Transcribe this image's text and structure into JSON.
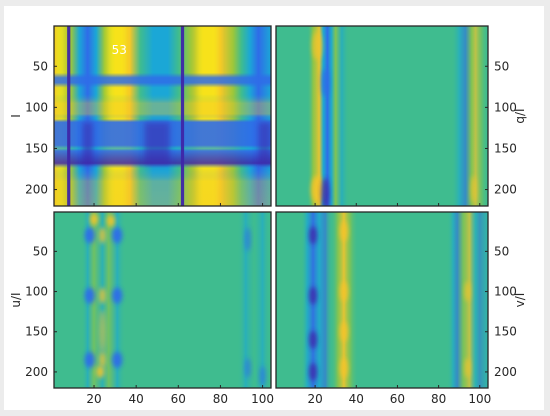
{
  "chart_data": {
    "type": "heatmap",
    "colormap": "parula",
    "layout": "2x2 panels sharing x (columns 1-104) and y (rows 1-220, reversed)",
    "xlim": [
      1,
      104
    ],
    "ylim": [
      220,
      1
    ],
    "xticks": [
      20,
      40,
      60,
      80,
      100
    ],
    "yticks": [
      50,
      100,
      150,
      200
    ],
    "panels": [
      {
        "position": "top-left",
        "ylabel": "I",
        "ylabel_side": "left",
        "annotation": "53",
        "structure": {
          "yellow_column_bands": [
            [
              1,
              10
            ],
            [
              24,
              38
            ],
            [
              66,
              84
            ],
            [
              90,
              97
            ]
          ],
          "blue_column_bands": [
            [
              14,
              20
            ],
            [
              42,
              58
            ],
            [
              98,
              104
            ]
          ],
          "dark_vertical_lines": [
            8,
            62
          ],
          "blue_row_bands": [
            [
              62,
              72
            ],
            [
              115,
              148
            ],
            [
              150,
              170
            ]
          ],
          "yellow_row_bands": [
            [
              1,
              45
            ],
            [
              85,
              115
            ],
            [
              180,
              220
            ]
          ]
        }
      },
      {
        "position": "top-right",
        "ylabel": "q/I",
        "ylabel_side": "right",
        "structure": {
          "yellow_columns": [
            21,
            29,
            97
          ],
          "blue_columns": [
            25,
            33,
            92
          ],
          "background": "green"
        }
      },
      {
        "position": "bottom-left",
        "ylabel": "u/I",
        "ylabel_side": "left",
        "structure": {
          "yellow_columns": [
            20,
            28
          ],
          "blue_columns": [
            18,
            23,
            31,
            93,
            100
          ],
          "blob_rows": [
            30,
            105,
            185
          ],
          "background": "green"
        }
      },
      {
        "position": "bottom-right",
        "ylabel": "v/I",
        "ylabel_side": "right",
        "structure": {
          "yellow_columns": [
            33,
            94
          ],
          "blue_columns": [
            18,
            25,
            88,
            100
          ],
          "background": "green"
        }
      }
    ],
    "colors": {
      "dark_blue": "#3e26a8",
      "blue": "#2f6ce8",
      "cyan": "#1ba7d6",
      "green": "#3fbc8f",
      "green_yellow": "#9dc73a",
      "yellow": "#f5c52a",
      "bright_yellow": "#f9fb0e"
    }
  }
}
